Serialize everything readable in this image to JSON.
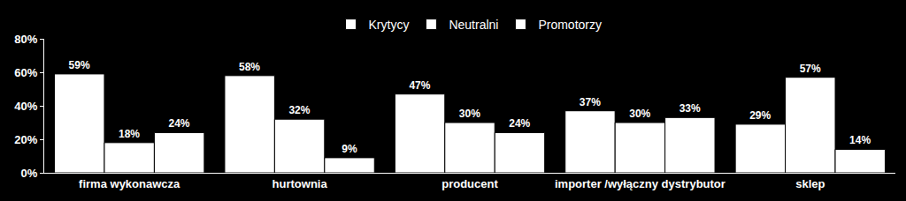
{
  "chart_data": {
    "type": "bar",
    "categories": [
      "firma wykonawcza",
      "hurtownia",
      "producent",
      "importer /wyłączny dystrybutor",
      "sklep"
    ],
    "series": [
      {
        "name": "Krytycy",
        "color": "#ffffff",
        "values": [
          59,
          58,
          47,
          37,
          29
        ],
        "value_labels": [
          "59%",
          "58%",
          "47%",
          "37%",
          "29%"
        ]
      },
      {
        "name": "Neutralni",
        "color": "#ffffff",
        "values": [
          18,
          32,
          30,
          30,
          57
        ],
        "value_labels": [
          "18%",
          "32%",
          "30%",
          "30%",
          "57%"
        ]
      },
      {
        "name": "Promotorzy",
        "color": "#ffffff",
        "values": [
          24,
          9,
          24,
          33,
          14
        ],
        "value_labels": [
          "24%",
          "9%",
          "24%",
          "33%",
          "14%"
        ]
      }
    ],
    "ylim": [
      0,
      80
    ],
    "yticks": [
      {
        "value": 0,
        "label": "0%"
      },
      {
        "value": 20,
        "label": "20%"
      },
      {
        "value": 40,
        "label": "40%"
      },
      {
        "value": 60,
        "label": "60%"
      },
      {
        "value": 80,
        "label": "80%"
      }
    ],
    "grid": false,
    "legend": "top",
    "data_labels": true
  }
}
